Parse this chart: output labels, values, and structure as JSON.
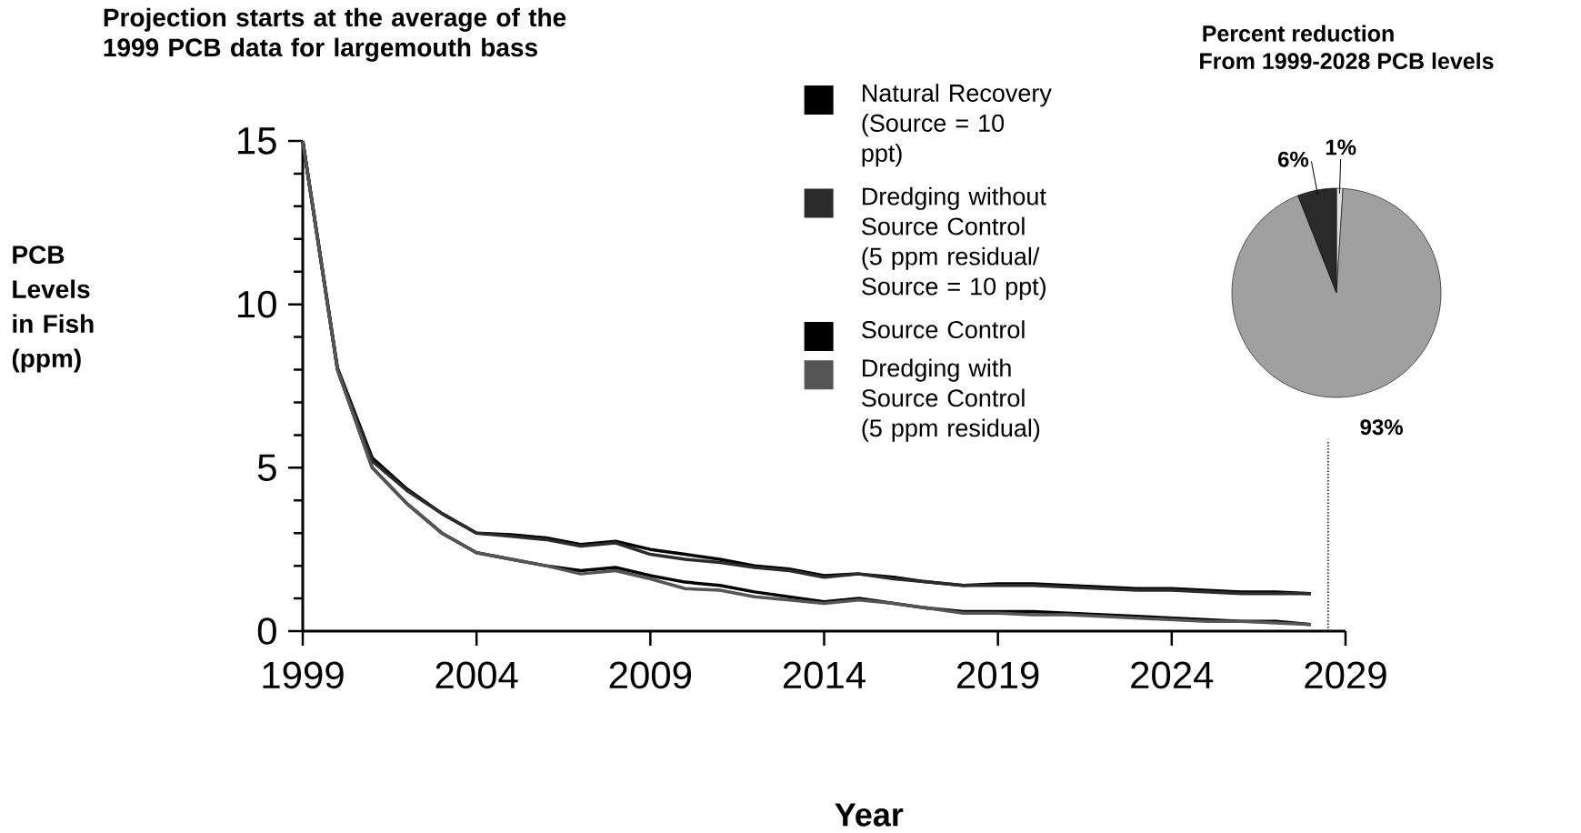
{
  "chart_data": [
    {
      "type": "line",
      "title": "Projection starts at the average of the 1999 PCB data for largemouth bass",
      "xlabel": "Year",
      "ylabel": "PCB Levels in Fish (ppm)",
      "x": [
        1999,
        2000,
        2001,
        2002,
        2003,
        2004,
        2005,
        2006,
        2007,
        2008,
        2009,
        2010,
        2011,
        2012,
        2013,
        2014,
        2015,
        2016,
        2017,
        2018,
        2019,
        2020,
        2021,
        2022,
        2023,
        2024,
        2025,
        2026,
        2027,
        2028
      ],
      "series": [
        {
          "name": "Natural Recovery (Source = 10 ppt)",
          "color": "#000000",
          "values": [
            15,
            8.05,
            5.3,
            4.35,
            3.6,
            3.0,
            2.95,
            2.85,
            2.65,
            2.75,
            2.5,
            2.35,
            2.2,
            2.0,
            1.9,
            1.7,
            1.75,
            1.65,
            1.5,
            1.4,
            1.45,
            1.45,
            1.4,
            1.35,
            1.3,
            1.3,
            1.25,
            1.2,
            1.2,
            1.15
          ]
        },
        {
          "name": "Dredging without Source Control (5 ppm residual/ Source = 10 ppt)",
          "color": "#2b2b2b",
          "values": [
            15,
            8.0,
            5.2,
            4.3,
            3.6,
            3.0,
            2.9,
            2.8,
            2.6,
            2.7,
            2.35,
            2.2,
            2.1,
            1.95,
            1.85,
            1.65,
            1.75,
            1.6,
            1.5,
            1.4,
            1.4,
            1.4,
            1.35,
            1.3,
            1.25,
            1.25,
            1.2,
            1.15,
            1.15,
            1.15
          ]
        },
        {
          "name": "Source Control",
          "color": "#000000",
          "values": [
            15,
            8.0,
            5.0,
            3.9,
            3.0,
            2.4,
            2.2,
            2.0,
            1.85,
            1.95,
            1.7,
            1.5,
            1.4,
            1.2,
            1.05,
            0.9,
            1.0,
            0.85,
            0.7,
            0.6,
            0.6,
            0.6,
            0.55,
            0.5,
            0.45,
            0.4,
            0.35,
            0.3,
            0.3,
            0.2
          ]
        },
        {
          "name": "Dredging with Source Control (5 ppm residual)",
          "color": "#555555",
          "values": [
            15,
            8.0,
            5.0,
            3.9,
            3.0,
            2.4,
            2.2,
            2.0,
            1.75,
            1.85,
            1.6,
            1.3,
            1.25,
            1.05,
            0.95,
            0.85,
            0.95,
            0.85,
            0.7,
            0.55,
            0.55,
            0.5,
            0.5,
            0.45,
            0.4,
            0.35,
            0.3,
            0.3,
            0.25,
            0.2
          ]
        }
      ],
      "xlim": [
        1999,
        2029
      ],
      "xticks": [
        1999,
        2004,
        2009,
        2014,
        2019,
        2024,
        2029
      ],
      "ylim": [
        0,
        15
      ],
      "yticks": [
        0,
        {
          "value": 1,
          "label": null
        },
        {
          "value": 2,
          "label": null
        },
        {
          "value": 3,
          "label": null
        },
        {
          "value": 4,
          "label": null
        },
        5,
        {
          "value": 6,
          "label": null
        },
        {
          "value": 7,
          "label": null
        },
        {
          "value": 8,
          "label": null
        },
        {
          "value": 9,
          "label": null
        },
        10,
        {
          "value": 11,
          "label": null
        },
        {
          "value": 12,
          "label": null
        },
        {
          "value": 13,
          "label": null
        },
        {
          "value": 14,
          "label": null
        },
        15
      ],
      "ref_lines": [
        {
          "axis": "x",
          "value": 2028.5,
          "line_style": "dotted",
          "color": "#000000"
        }
      ],
      "legend": "top right"
    },
    {
      "type": "pie",
      "title": "Percent reduction",
      "subtitle": "From 1999-2028 PCB levels",
      "categories": [
        null,
        null,
        null
      ],
      "values": [
        1,
        93,
        6
      ],
      "colors": [
        "#e0e0e0",
        "#a0a0a0",
        "#2a2a2a"
      ],
      "value_labels": [
        "1%",
        "93%",
        "6%"
      ]
    }
  ]
}
